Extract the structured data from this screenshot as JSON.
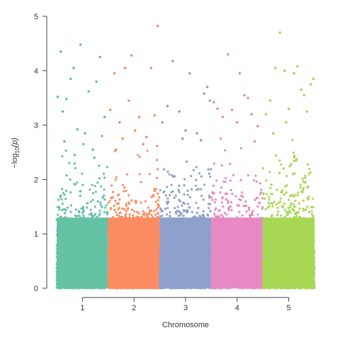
{
  "chart_data": {
    "type": "scatter",
    "subtype": "manhattan",
    "xlabel": "Chromosome",
    "ylabel_prefix": "−log",
    "ylabel_sub": "10",
    "ylabel_suffix": "(p)",
    "ylim": [
      0,
      5
    ],
    "yticks": [
      "0",
      "1",
      "2",
      "3",
      "4",
      "5"
    ],
    "grid": false,
    "legend": "none",
    "chromosomes": [
      {
        "label": "1",
        "color": "#66c2a5",
        "dense_top": 1.95,
        "points": [
          [
            0.02,
            3.52
          ],
          [
            0.08,
            4.35
          ],
          [
            0.12,
            3.25
          ],
          [
            0.19,
            3.48
          ],
          [
            0.27,
            3.85
          ],
          [
            0.33,
            4.05
          ],
          [
            0.4,
            2.92
          ],
          [
            0.46,
            4.48
          ],
          [
            0.55,
            2.85
          ],
          [
            0.62,
            3.62
          ],
          [
            0.7,
            2.55
          ],
          [
            0.77,
            3.8
          ],
          [
            0.84,
            4.25
          ],
          [
            0.93,
            3.15
          ],
          [
            0.15,
            2.7
          ],
          [
            0.52,
            2.65
          ],
          [
            0.88,
            2.8
          ],
          [
            0.35,
            2.45
          ],
          [
            0.73,
            2.4
          ]
        ]
      },
      {
        "label": "2",
        "color": "#fc8d62",
        "dense_top": 2.05,
        "points": [
          [
            0.04,
            3.28
          ],
          [
            0.12,
            3.95
          ],
          [
            0.22,
            3.05
          ],
          [
            0.33,
            4.05
          ],
          [
            0.4,
            3.45
          ],
          [
            0.45,
            4.28
          ],
          [
            0.52,
            2.9
          ],
          [
            0.6,
            3.15
          ],
          [
            0.68,
            2.65
          ],
          [
            0.83,
            4.05
          ],
          [
            0.9,
            3.18
          ],
          [
            0.96,
            4.82
          ],
          [
            0.28,
            2.75
          ],
          [
            0.74,
            2.78
          ],
          [
            0.15,
            2.55
          ]
        ]
      },
      {
        "label": "3",
        "color": "#8da0cb",
        "dense_top": 2.15,
        "points": [
          [
            0.05,
            3.05
          ],
          [
            0.15,
            3.35
          ],
          [
            0.25,
            4.18
          ],
          [
            0.38,
            3.25
          ],
          [
            0.5,
            2.9
          ],
          [
            0.58,
            3.95
          ],
          [
            0.72,
            2.85
          ],
          [
            0.86,
            3.58
          ],
          [
            0.92,
            3.7
          ],
          [
            0.97,
            3.45
          ],
          [
            0.44,
            2.75
          ],
          [
            0.8,
            2.72
          ]
        ]
      },
      {
        "label": "4",
        "color": "#e78ac3",
        "dense_top": 1.95,
        "points": [
          [
            0.05,
            3.42
          ],
          [
            0.12,
            3.3
          ],
          [
            0.22,
            3.15
          ],
          [
            0.32,
            4.3
          ],
          [
            0.4,
            3.28
          ],
          [
            0.5,
            3.05
          ],
          [
            0.55,
            3.95
          ],
          [
            0.64,
            3.55
          ],
          [
            0.71,
            3.5
          ],
          [
            0.78,
            3.2
          ],
          [
            0.9,
            2.98
          ],
          [
            0.18,
            2.75
          ],
          [
            0.84,
            2.7
          ]
        ]
      },
      {
        "label": "5",
        "color": "#a6d854",
        "dense_top": 2.15,
        "points": [
          [
            0.06,
            3.2
          ],
          [
            0.14,
            3.45
          ],
          [
            0.24,
            4.05
          ],
          [
            0.33,
            4.7
          ],
          [
            0.42,
            4.0
          ],
          [
            0.5,
            3.3
          ],
          [
            0.6,
            3.95
          ],
          [
            0.67,
            4.08
          ],
          [
            0.74,
            3.65
          ],
          [
            0.8,
            3.55
          ],
          [
            0.85,
            3.25
          ],
          [
            0.93,
            3.75
          ],
          [
            0.98,
            3.85
          ],
          [
            0.45,
            3.05
          ],
          [
            0.2,
            2.85
          ]
        ]
      }
    ]
  }
}
